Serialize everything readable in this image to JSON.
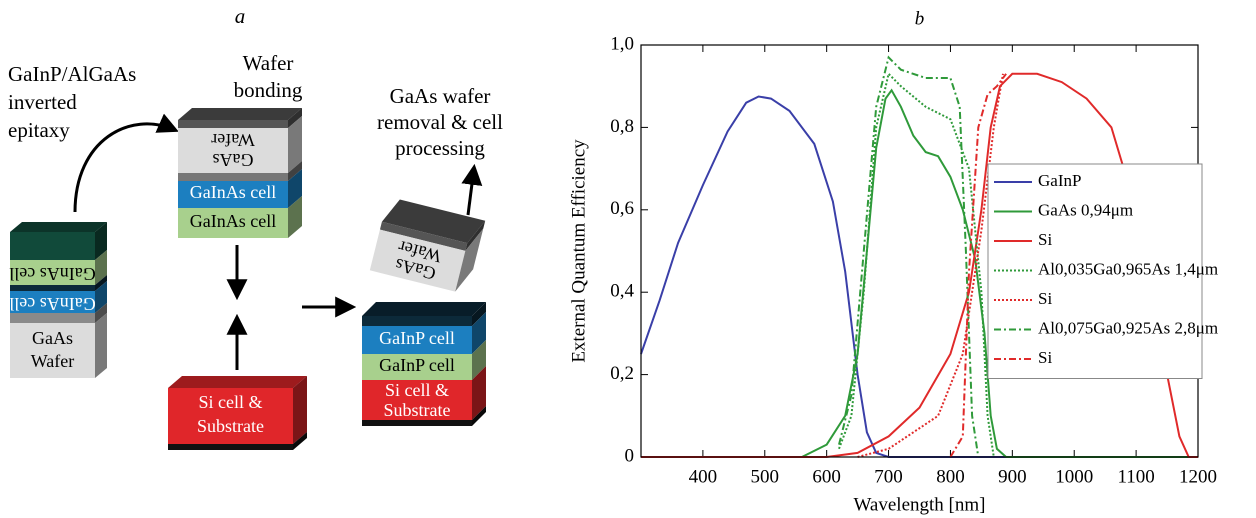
{
  "diagram": {
    "label": "a",
    "steps": [
      [
        "GaInP/AlGaAs",
        "inverted",
        "epitaxy"
      ],
      [
        "Wafer",
        "bonding"
      ],
      [
        "GaAs wafer",
        "removal & cell",
        "processing"
      ]
    ],
    "stack_epitaxy": [
      "GaInAs cell",
      "GaInAs cell",
      "GaAs",
      "Wafer"
    ],
    "stack_bonding": [
      "GaAs",
      "Wafer",
      "GaInAs cell",
      "GaInAs cell"
    ],
    "stack_si": [
      "Si cell &",
      "Substrate"
    ],
    "removed_wafer": [
      "GaAs",
      "Wafer"
    ],
    "stack_final": [
      "GaInP cell",
      "GaInP cell",
      "Si cell &",
      "Substrate"
    ]
  },
  "chart_data": {
    "type": "line",
    "title": "b",
    "xlabel": "Wavelength [nm]",
    "ylabel": "External Quantum Efficiency",
    "xlim": [
      300,
      1200
    ],
    "ylim": [
      0,
      1
    ],
    "xticks": [
      400,
      500,
      600,
      700,
      800,
      900,
      1000,
      1100,
      1200
    ],
    "yticks": [
      0,
      {
        "value": 0.2,
        "label": "0,2"
      },
      {
        "value": 0.4,
        "label": "0,4"
      },
      {
        "value": 0.6,
        "label": "0,6"
      },
      {
        "value": 0.8,
        "label": "0,8"
      },
      {
        "value": 1,
        "label": "1,0"
      }
    ],
    "legend": "right",
    "series": [
      {
        "name": "GaInP",
        "color": "#3a3fa8",
        "linestyle": "solid",
        "x": [
          300,
          330,
          360,
          400,
          440,
          470,
          490,
          510,
          540,
          580,
          610,
          630,
          650,
          665,
          680,
          700,
          1200
        ],
        "values": [
          0.25,
          0.38,
          0.52,
          0.66,
          0.79,
          0.86,
          0.875,
          0.87,
          0.84,
          0.76,
          0.62,
          0.45,
          0.2,
          0.06,
          0.01,
          0,
          0
        ]
      },
      {
        "name": "GaAs 0,94μm",
        "color": "#2f9a3a",
        "linestyle": "solid",
        "x": [
          300,
          560,
          600,
          630,
          650,
          665,
          680,
          695,
          705,
          720,
          740,
          760,
          780,
          800,
          820,
          840,
          855,
          865,
          875,
          890,
          1200
        ],
        "values": [
          0,
          0,
          0.03,
          0.1,
          0.25,
          0.5,
          0.75,
          0.87,
          0.89,
          0.85,
          0.78,
          0.74,
          0.73,
          0.68,
          0.6,
          0.48,
          0.3,
          0.1,
          0.02,
          0,
          0
        ]
      },
      {
        "name": "Si",
        "color": "#e02a2a",
        "linestyle": "solid",
        "x": [
          300,
          600,
          650,
          700,
          750,
          800,
          830,
          850,
          865,
          880,
          900,
          940,
          980,
          1020,
          1060,
          1100,
          1130,
          1150,
          1170,
          1185,
          1200
        ],
        "values": [
          0,
          0,
          0.01,
          0.05,
          0.12,
          0.25,
          0.4,
          0.6,
          0.8,
          0.9,
          0.93,
          0.93,
          0.91,
          0.87,
          0.8,
          0.6,
          0.35,
          0.2,
          0.05,
          0,
          0
        ]
      },
      {
        "name": "Al0,035Ga0,965As 1,4μm",
        "color": "#2f9a3a",
        "linestyle": "dotted",
        "x": [
          620,
          640,
          660,
          680,
          700,
          720,
          760,
          800,
          830,
          850,
          860,
          870
        ],
        "values": [
          0.02,
          0.1,
          0.4,
          0.8,
          0.93,
          0.9,
          0.85,
          0.82,
          0.7,
          0.4,
          0.1,
          0
        ]
      },
      {
        "name": "Si",
        "color": "#e02a2a",
        "linestyle": "dotted",
        "x": [
          650,
          700,
          780,
          820,
          850,
          870,
          885
        ],
        "values": [
          0,
          0.02,
          0.1,
          0.25,
          0.55,
          0.8,
          0.93
        ]
      },
      {
        "name": "Al0,075Ga0,925As 2,8μm",
        "color": "#2f9a3a",
        "linestyle": "dashdot",
        "x": [
          620,
          640,
          660,
          680,
          700,
          720,
          760,
          800,
          815,
          825,
          835,
          845
        ],
        "values": [
          0.03,
          0.15,
          0.5,
          0.85,
          0.97,
          0.94,
          0.92,
          0.92,
          0.85,
          0.5,
          0.1,
          0
        ]
      },
      {
        "name": "Si",
        "color": "#e02a2a",
        "linestyle": "dashdot",
        "x": [
          800,
          820,
          830,
          845,
          860,
          875,
          890
        ],
        "values": [
          0,
          0.05,
          0.45,
          0.8,
          0.88,
          0.9,
          0.93
        ]
      }
    ]
  }
}
